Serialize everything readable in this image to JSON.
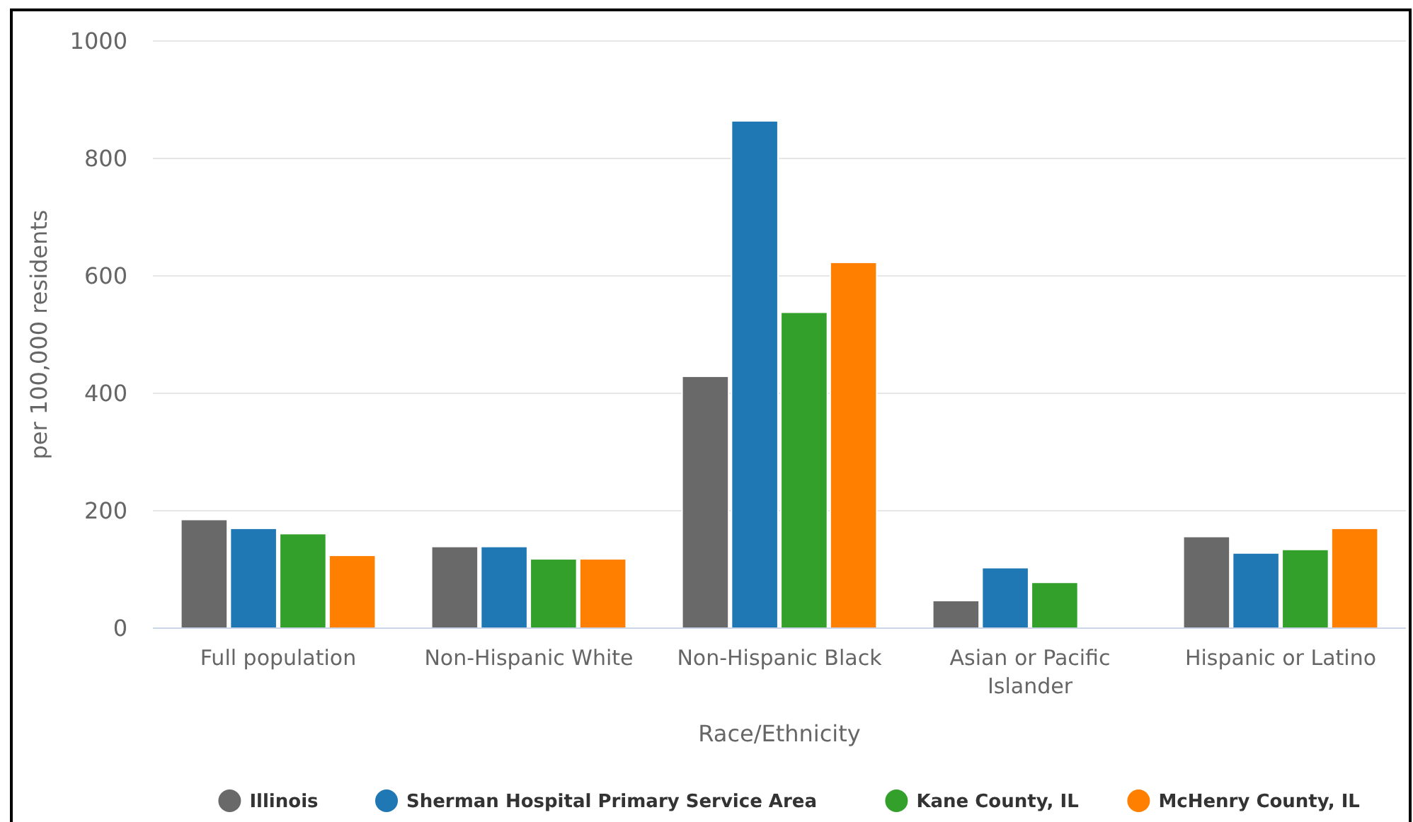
{
  "chart_data": {
    "type": "bar",
    "xlabel": "Race/Ethnicity",
    "ylabel": "per 100,000 residents",
    "categories": [
      "Full population",
      "Non-Hispanic White",
      "Non-Hispanic Black",
      "Asian or Pacific Islander",
      "Hispanic or Latino"
    ],
    "series": [
      {
        "name": "Illinois",
        "color": "#696969",
        "values": [
          185,
          139,
          429,
          47,
          156
        ]
      },
      {
        "name": "Sherman Hospital Primary Service Area",
        "color": "#1f77b4",
        "values": [
          170,
          139,
          864,
          103,
          128
        ]
      },
      {
        "name": "Kane County, IL",
        "color": "#33a02c",
        "values": [
          161,
          118,
          538,
          78,
          134
        ]
      },
      {
        "name": "McHenry County, IL",
        "color": "#ff7f00",
        "values": [
          124,
          118,
          623,
          null,
          170
        ]
      }
    ],
    "ylim": [
      0,
      1000
    ],
    "yticks": [
      0,
      200,
      400,
      600,
      800,
      1000
    ],
    "grid": "y",
    "legend": "bottom"
  }
}
